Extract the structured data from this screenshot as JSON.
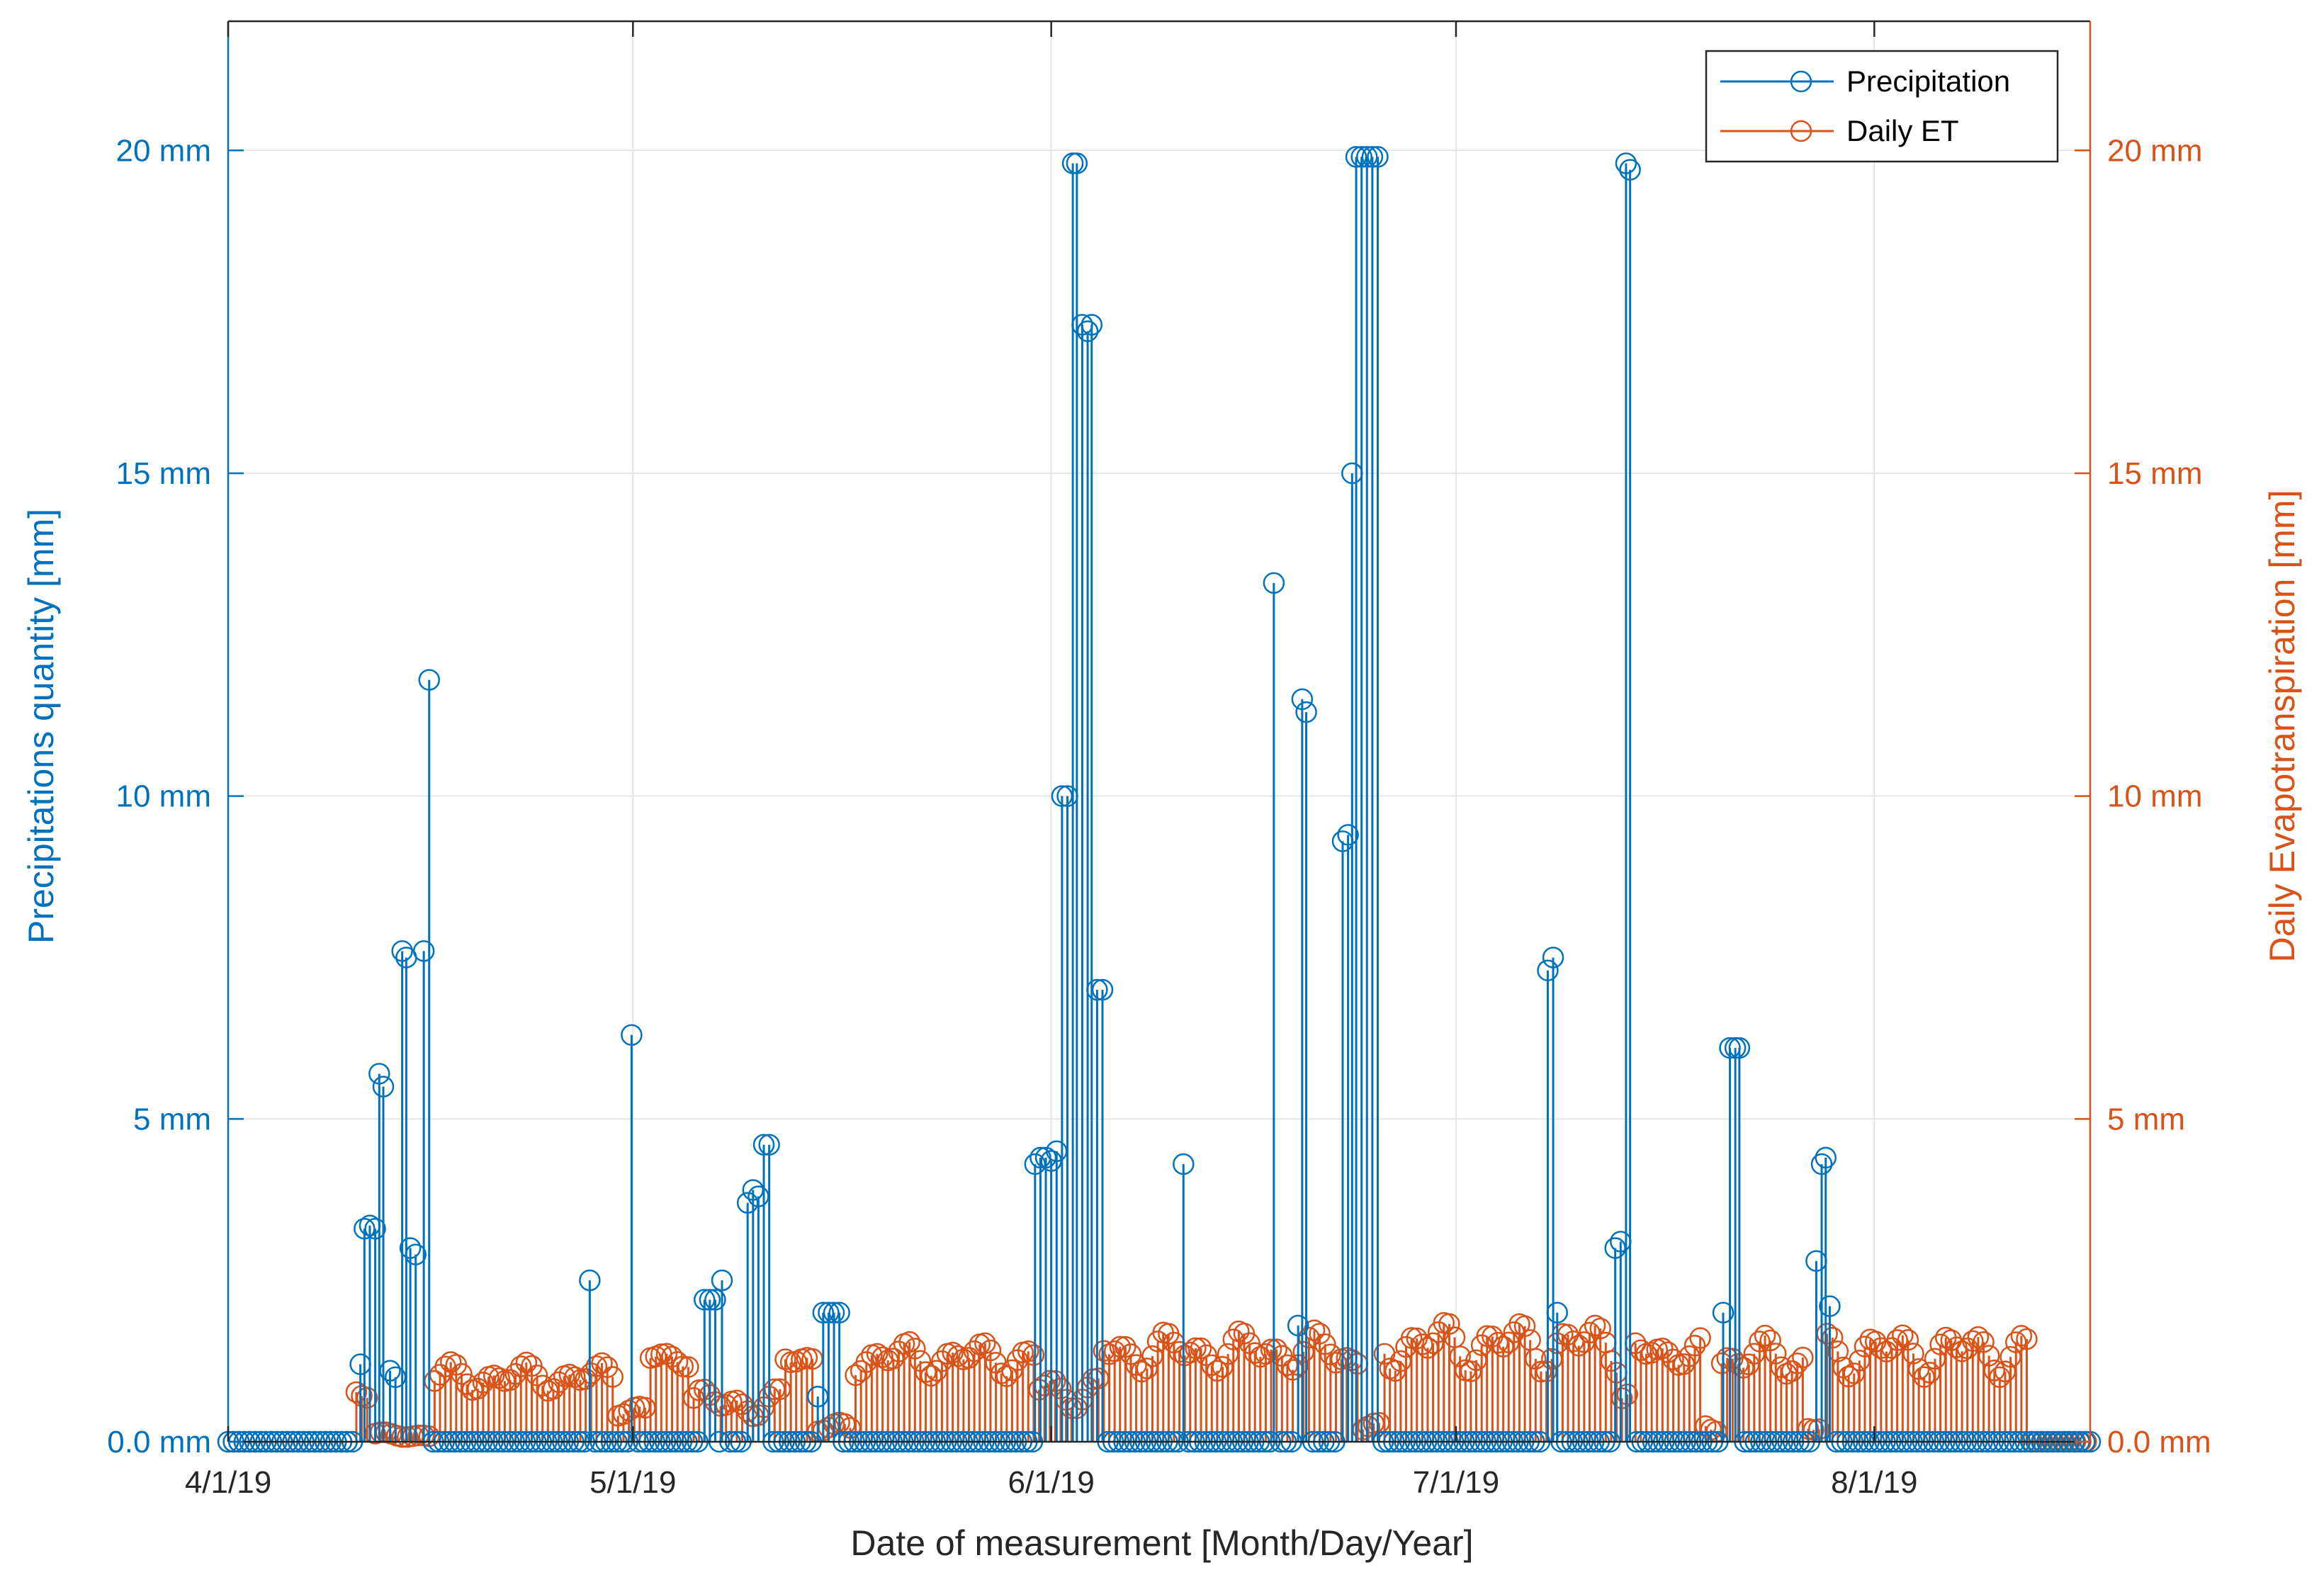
{
  "chart_data": {
    "type": "stem",
    "title": "",
    "xlabel": "Date of measurement [Month/Day/Year]",
    "ylabel_left": "Precipitations quantity [mm]",
    "ylabel_right": "Daily Evapotranspiration [mm]",
    "ylim": [
      0,
      22
    ],
    "yticks": [
      {
        "value": 0,
        "left": "0.0 mm",
        "right": "0.0 mm"
      },
      {
        "value": 5,
        "left": "5 mm",
        "right": "5 mm"
      },
      {
        "value": 10,
        "left": "10 mm",
        "right": "10 mm"
      },
      {
        "value": 15,
        "left": "15 mm",
        "right": "15 mm"
      },
      {
        "value": 20,
        "left": "20 mm",
        "right": "20 mm"
      }
    ],
    "xlim_days": [
      0,
      138
    ],
    "xticks": [
      {
        "day": 0,
        "label": "4/1/19"
      },
      {
        "day": 30,
        "label": "5/1/19"
      },
      {
        "day": 61,
        "label": "6/1/19"
      },
      {
        "day": 91,
        "label": "7/1/19"
      },
      {
        "day": 122,
        "label": "8/1/19"
      }
    ],
    "grid": true,
    "legend_position": "top-right",
    "colors": {
      "precipitation": "#0072BD",
      "et": "#D95319",
      "axis": "#262626",
      "grid": "#DFDFDF"
    },
    "series": [
      {
        "name": "Precipitation",
        "color": "#0072BD",
        "points": [
          [
            9.8,
            1.2
          ],
          [
            10.1,
            3.3
          ],
          [
            10.5,
            3.35
          ],
          [
            10.9,
            3.3
          ],
          [
            11.2,
            5.7
          ],
          [
            11.5,
            5.5
          ],
          [
            12.0,
            1.1
          ],
          [
            12.4,
            1.0
          ],
          [
            12.9,
            7.6
          ],
          [
            13.2,
            7.5
          ],
          [
            13.5,
            3.0
          ],
          [
            13.9,
            2.9
          ],
          [
            14.5,
            7.6
          ],
          [
            14.9,
            11.8
          ],
          [
            26.8,
            2.5
          ],
          [
            29.9,
            6.3
          ],
          [
            35.3,
            2.2
          ],
          [
            35.7,
            2.2
          ],
          [
            36.1,
            2.2
          ],
          [
            36.6,
            2.5
          ],
          [
            38.5,
            3.7
          ],
          [
            38.9,
            3.9
          ],
          [
            39.3,
            3.8
          ],
          [
            39.7,
            4.6
          ],
          [
            40.1,
            4.6
          ],
          [
            43.7,
            0.7
          ],
          [
            44.1,
            2.0
          ],
          [
            44.5,
            2.0
          ],
          [
            44.9,
            2.0
          ],
          [
            45.3,
            2.0
          ],
          [
            59.8,
            4.3
          ],
          [
            60.2,
            4.4
          ],
          [
            60.6,
            4.4
          ],
          [
            61.0,
            4.35
          ],
          [
            61.4,
            4.5
          ],
          [
            61.8,
            10.0
          ],
          [
            62.2,
            10.0
          ],
          [
            62.6,
            19.8
          ],
          [
            62.9,
            19.8
          ],
          [
            63.3,
            17.3
          ],
          [
            63.7,
            17.2
          ],
          [
            64.0,
            17.3
          ],
          [
            64.4,
            7.0
          ],
          [
            64.8,
            7.0
          ],
          [
            70.8,
            4.3
          ],
          [
            77.5,
            13.3
          ],
          [
            79.3,
            1.8
          ],
          [
            79.6,
            11.5
          ],
          [
            79.9,
            11.3
          ],
          [
            82.6,
            9.3
          ],
          [
            83.0,
            9.4
          ],
          [
            83.3,
            15.0
          ],
          [
            83.6,
            19.9
          ],
          [
            84.0,
            19.9
          ],
          [
            84.4,
            19.9
          ],
          [
            84.8,
            19.9
          ],
          [
            85.2,
            19.9
          ],
          [
            97.8,
            7.3
          ],
          [
            98.2,
            7.5
          ],
          [
            98.5,
            2.0
          ],
          [
            102.8,
            3.0
          ],
          [
            103.2,
            3.1
          ],
          [
            103.6,
            19.8
          ],
          [
            103.9,
            19.7
          ],
          [
            110.8,
            2.0
          ],
          [
            111.3,
            6.1
          ],
          [
            111.7,
            6.1
          ],
          [
            112.0,
            6.1
          ],
          [
            117.7,
            2.8
          ],
          [
            118.1,
            4.3
          ],
          [
            118.4,
            4.4
          ],
          [
            118.7,
            2.1
          ]
        ]
      },
      {
        "name": "Daily ET",
        "color": "#D95319",
        "segments": [
          {
            "start": 9.5,
            "end": 10.5,
            "base": 0.8,
            "amp": 0.15
          },
          {
            "start": 10.9,
            "end": 14.9,
            "base": 0.1,
            "amp": 0.05
          },
          {
            "start": 15.3,
            "end": 28.5,
            "base": 1.0,
            "amp": 0.25
          },
          {
            "start": 28.9,
            "end": 30.9,
            "base": 0.5,
            "amp": 0.1
          },
          {
            "start": 31.3,
            "end": 34.1,
            "base": 1.3,
            "amp": 0.15
          },
          {
            "start": 34.5,
            "end": 40.9,
            "base": 0.6,
            "amp": 0.25
          },
          {
            "start": 41.3,
            "end": 43.3,
            "base": 1.3,
            "amp": 0.15
          },
          {
            "start": 43.7,
            "end": 46.1,
            "base": 0.2,
            "amp": 0.1
          },
          {
            "start": 46.5,
            "end": 59.7,
            "base": 1.3,
            "amp": 0.3
          },
          {
            "start": 60.1,
            "end": 64.5,
            "base": 0.8,
            "amp": 0.3
          },
          {
            "start": 64.9,
            "end": 81.7,
            "base": 1.4,
            "amp": 0.35
          },
          {
            "start": 82.1,
            "end": 83.7,
            "base": 1.3,
            "amp": 0.2
          },
          {
            "start": 84.1,
            "end": 85.3,
            "base": 0.2,
            "amp": 0.1
          },
          {
            "start": 85.7,
            "end": 102.9,
            "base": 1.5,
            "amp": 0.45
          },
          {
            "start": 103.3,
            "end": 103.9,
            "base": 0.7,
            "amp": 0.1
          },
          {
            "start": 104.3,
            "end": 109.1,
            "base": 1.4,
            "amp": 0.25
          },
          {
            "start": 109.5,
            "end": 110.3,
            "base": 0.2,
            "amp": 0.1
          },
          {
            "start": 110.7,
            "end": 116.7,
            "base": 1.3,
            "amp": 0.35
          },
          {
            "start": 117.1,
            "end": 118.1,
            "base": 0.2,
            "amp": 0.1
          },
          {
            "start": 118.5,
            "end": 133.3,
            "base": 1.4,
            "amp": 0.4
          }
        ]
      }
    ]
  }
}
